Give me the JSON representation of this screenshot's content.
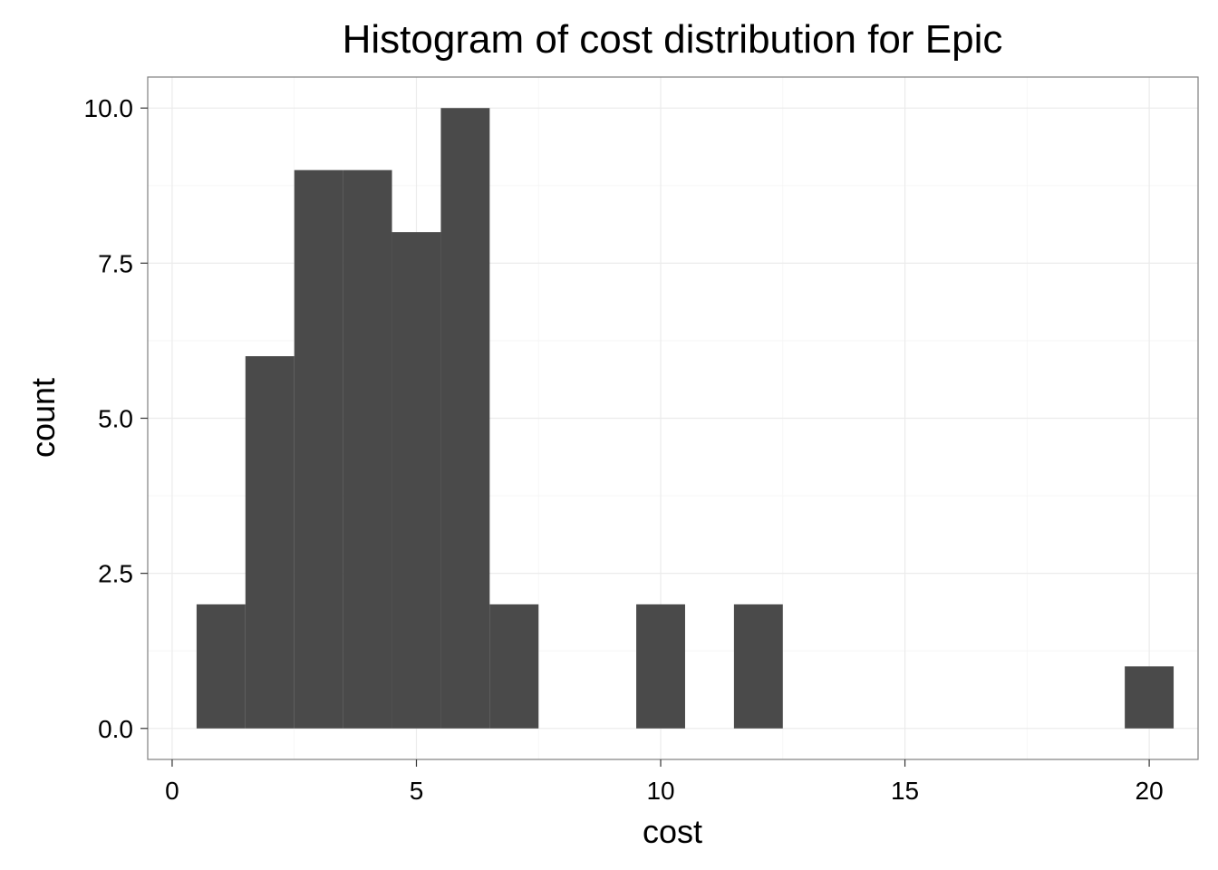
{
  "chart_data": {
    "type": "bar",
    "title": "Histogram of cost distribution for Epic",
    "xlabel": "cost",
    "ylabel": "count",
    "xlim": [
      -0.5,
      21
    ],
    "ylim": [
      -0.5,
      10.5
    ],
    "binwidth": 1,
    "bins": [
      {
        "x": 1,
        "count": 2
      },
      {
        "x": 2,
        "count": 6
      },
      {
        "x": 3,
        "count": 9
      },
      {
        "x": 4,
        "count": 9
      },
      {
        "x": 5,
        "count": 8
      },
      {
        "x": 6,
        "count": 10
      },
      {
        "x": 7,
        "count": 2
      },
      {
        "x": 10,
        "count": 2
      },
      {
        "x": 12,
        "count": 2
      },
      {
        "x": 20,
        "count": 1
      }
    ],
    "x_ticks": [
      0,
      5,
      10,
      15,
      20
    ],
    "x_tick_labels": [
      "0",
      "5",
      "10",
      "15",
      "20"
    ],
    "y_ticks": [
      0,
      2.5,
      5,
      7.5,
      10
    ],
    "y_tick_labels": [
      "0.0",
      "2.5",
      "5.0",
      "7.5",
      "10.0"
    ],
    "grid": true,
    "bar_color": "#4a4a4a",
    "panel_background": "#ffffff"
  }
}
